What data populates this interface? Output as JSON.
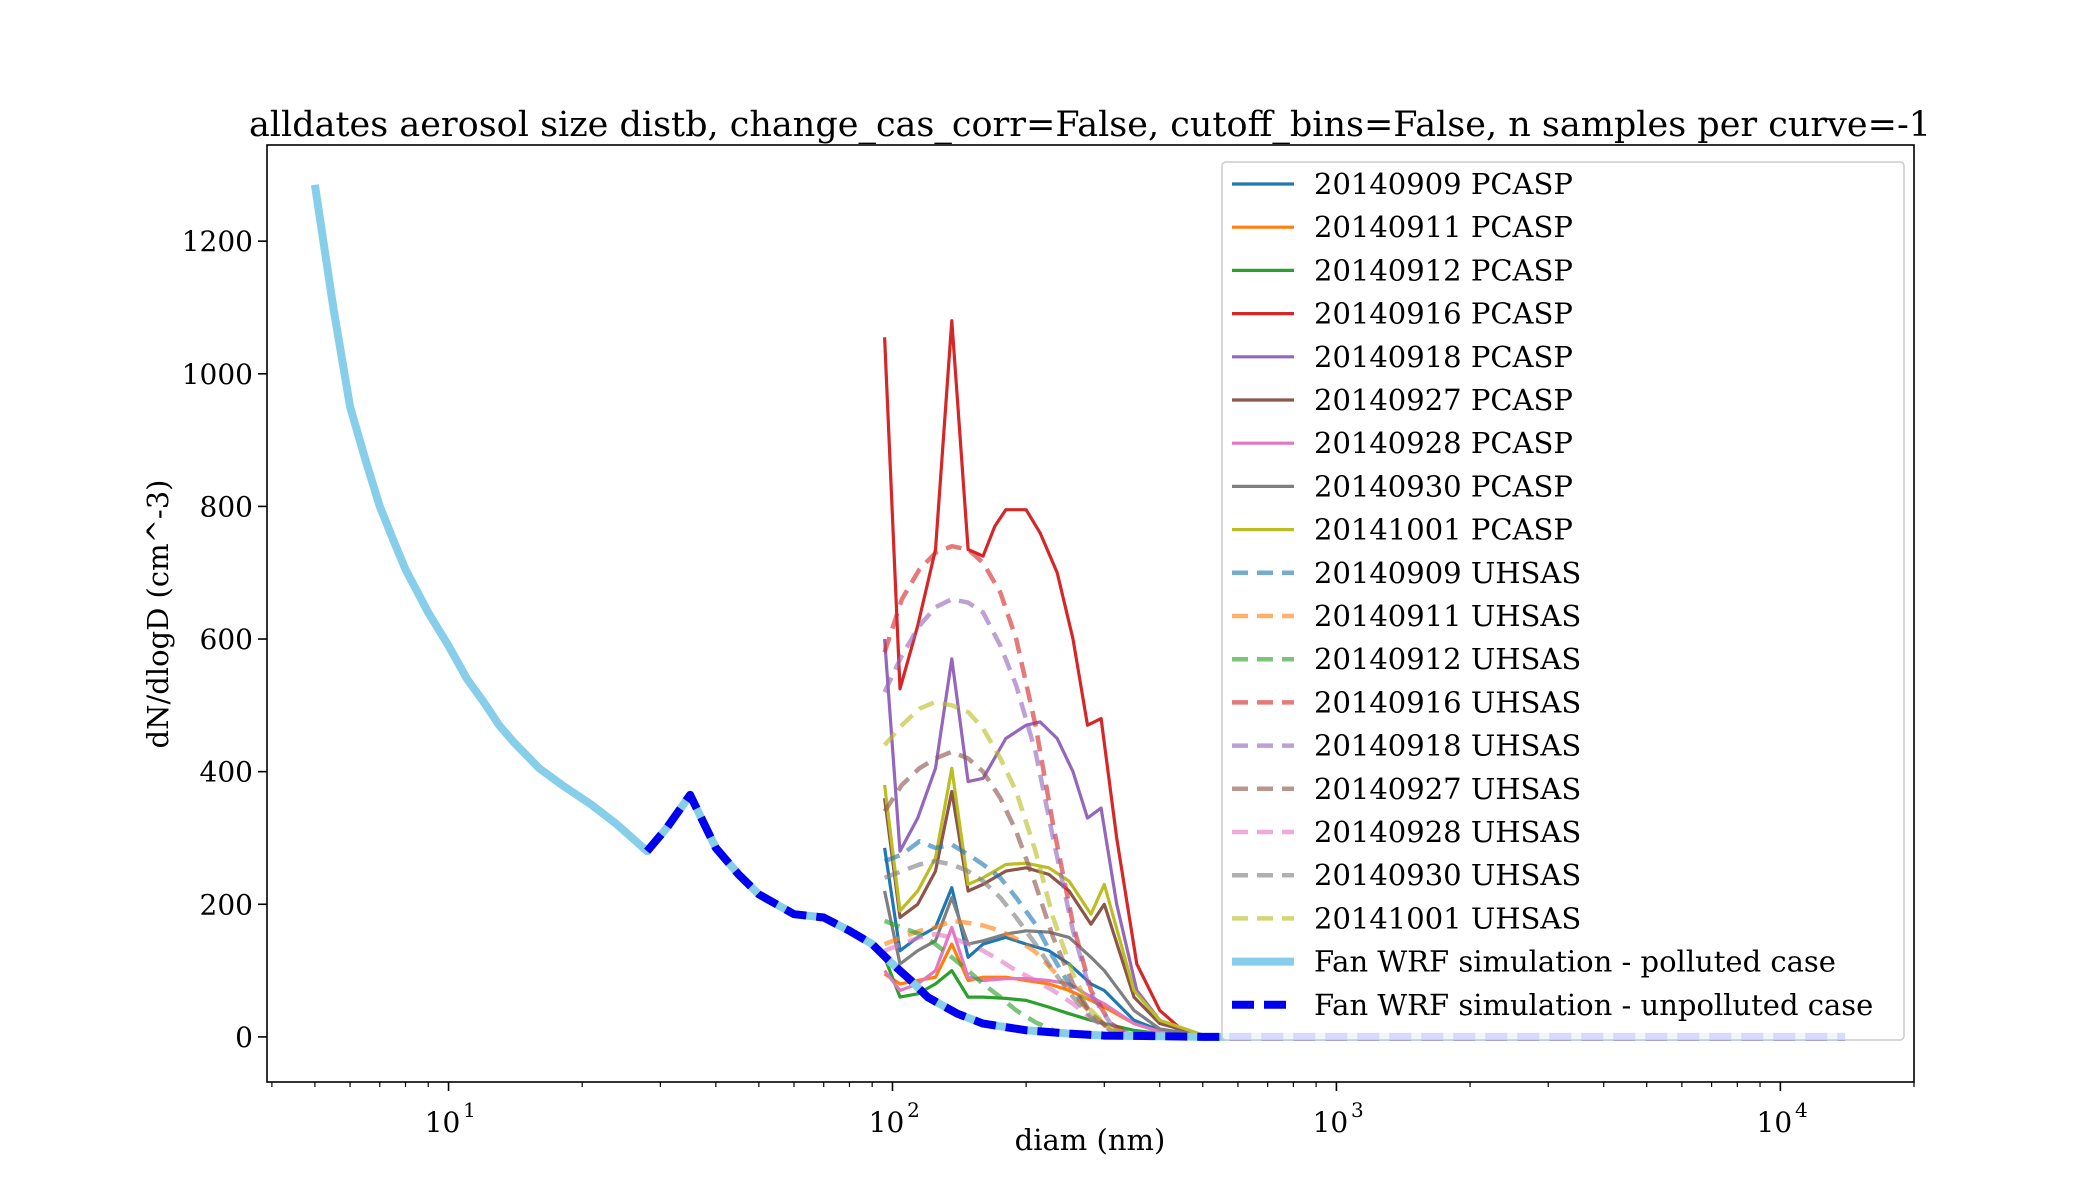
{
  "chart_data": {
    "type": "line",
    "title": "alldates aerosol size distb, change_cas_corr=False, cutoff_bins=False, n samples per curve=-1",
    "xlabel": "diam (nm)",
    "ylabel": "dN/dlogD (cm^-3)",
    "xscale": "log",
    "xlim": [
      3.9,
      20000
    ],
    "ylim": [
      -68,
      1345
    ],
    "yticks": [
      0,
      200,
      400,
      600,
      800,
      1000,
      1200
    ],
    "ytick_labels": [
      "0",
      "200",
      "400",
      "600",
      "800",
      "1000",
      "1200"
    ],
    "xticks": [
      10,
      100,
      1000,
      10000
    ],
    "xtick_labels": [
      {
        "base": "10",
        "exp": "1"
      },
      {
        "base": "10",
        "exp": "2"
      },
      {
        "base": "10",
        "exp": "3"
      },
      {
        "base": "10",
        "exp": "4"
      }
    ],
    "grid": false,
    "legend_position": "top-right",
    "series": [
      {
        "name": "20140909 PCASP",
        "color": "#1f77b4",
        "style": "solid",
        "width": 3.2,
        "x": [
          96,
          104,
          114,
          125,
          136,
          148,
          160,
          180,
          200,
          225,
          250,
          280,
          300,
          350,
          400,
          500
        ],
        "y": [
          285,
          130,
          150,
          165,
          225,
          120,
          140,
          150,
          140,
          130,
          110,
          80,
          70,
          25,
          10,
          2
        ]
      },
      {
        "name": "20140911 PCASP",
        "color": "#ff7f0e",
        "style": "solid",
        "width": 3.2,
        "x": [
          96,
          104,
          114,
          125,
          136,
          148,
          160,
          180,
          200,
          225,
          250,
          280,
          300,
          350,
          400,
          500
        ],
        "y": [
          95,
          80,
          85,
          90,
          140,
          85,
          90,
          90,
          85,
          80,
          70,
          55,
          45,
          20,
          8,
          2
        ]
      },
      {
        "name": "20140912 PCASP",
        "color": "#2ca02c",
        "style": "solid",
        "width": 3.2,
        "x": [
          96,
          104,
          114,
          125,
          136,
          148,
          160,
          180,
          200,
          225,
          250,
          280,
          300,
          350,
          400,
          500
        ],
        "y": [
          120,
          60,
          65,
          80,
          100,
          60,
          60,
          58,
          55,
          45,
          35,
          25,
          20,
          10,
          5,
          1
        ]
      },
      {
        "name": "20140916 PCASP",
        "color": "#d62728",
        "style": "solid",
        "width": 3.2,
        "x": [
          96,
          104,
          114,
          125,
          136,
          148,
          160,
          170,
          180,
          200,
          215,
          235,
          255,
          275,
          295,
          320,
          355,
          400,
          450,
          500
        ],
        "y": [
          1055,
          525,
          620,
          735,
          1080,
          735,
          725,
          770,
          795,
          795,
          760,
          700,
          600,
          470,
          480,
          300,
          110,
          40,
          10,
          2
        ]
      },
      {
        "name": "20140918 PCASP",
        "color": "#9467bd",
        "style": "solid",
        "width": 3.2,
        "x": [
          96,
          104,
          114,
          125,
          136,
          148,
          160,
          180,
          200,
          215,
          235,
          255,
          275,
          295,
          320,
          355,
          400,
          450,
          500
        ],
        "y": [
          600,
          280,
          330,
          405,
          570,
          385,
          390,
          450,
          470,
          475,
          450,
          400,
          330,
          345,
          200,
          70,
          25,
          8,
          2
        ]
      },
      {
        "name": "20140927 PCASP",
        "color": "#8c564b",
        "style": "solid",
        "width": 3.2,
        "x": [
          96,
          104,
          114,
          125,
          136,
          148,
          160,
          180,
          200,
          225,
          250,
          280,
          300,
          350,
          400,
          500
        ],
        "y": [
          360,
          180,
          200,
          250,
          370,
          220,
          230,
          250,
          255,
          245,
          220,
          170,
          200,
          60,
          20,
          3
        ]
      },
      {
        "name": "20140928 PCASP",
        "color": "#e377c2",
        "style": "solid",
        "width": 3.2,
        "x": [
          96,
          104,
          114,
          125,
          136,
          148,
          160,
          180,
          200,
          225,
          250,
          280,
          300,
          350,
          400,
          500
        ],
        "y": [
          100,
          70,
          80,
          100,
          165,
          90,
          85,
          88,
          88,
          85,
          80,
          60,
          50,
          20,
          8,
          2
        ]
      },
      {
        "name": "20140930 PCASP",
        "color": "#7f7f7f",
        "style": "solid",
        "width": 3.2,
        "x": [
          96,
          104,
          114,
          125,
          136,
          148,
          160,
          180,
          200,
          225,
          250,
          280,
          300,
          350,
          400,
          500
        ],
        "y": [
          220,
          110,
          130,
          145,
          210,
          140,
          145,
          155,
          160,
          158,
          150,
          120,
          100,
          40,
          12,
          2
        ]
      },
      {
        "name": "20141001 PCASP",
        "color": "#bcbd22",
        "style": "solid",
        "width": 3.2,
        "x": [
          96,
          104,
          114,
          125,
          136,
          148,
          160,
          180,
          200,
          225,
          250,
          280,
          300,
          350,
          400,
          500
        ],
        "y": [
          380,
          190,
          220,
          270,
          405,
          230,
          240,
          260,
          262,
          255,
          235,
          185,
          230,
          70,
          25,
          3
        ]
      },
      {
        "name": "20140909 UHSAS",
        "color": "#1f77b4",
        "style": "dashed",
        "width": 4.5,
        "opacity": 0.62,
        "x": [
          96,
          105,
          115,
          125,
          136,
          148,
          160,
          175,
          190,
          210,
          230,
          255,
          280,
          310,
          340
        ],
        "y": [
          265,
          275,
          295,
          285,
          290,
          275,
          260,
          240,
          210,
          170,
          120,
          70,
          35,
          12,
          3
        ]
      },
      {
        "name": "20140911 UHSAS",
        "color": "#ff7f0e",
        "style": "dashed",
        "width": 4.5,
        "opacity": 0.62,
        "x": [
          96,
          105,
          115,
          125,
          136,
          148,
          160,
          175,
          190,
          210,
          230,
          255,
          280,
          310,
          340
        ],
        "y": [
          140,
          150,
          160,
          165,
          175,
          172,
          168,
          160,
          148,
          128,
          100,
          65,
          35,
          12,
          3
        ]
      },
      {
        "name": "20140912 UHSAS",
        "color": "#2ca02c",
        "style": "dashed",
        "width": 4.5,
        "opacity": 0.62,
        "x": [
          96,
          105,
          115,
          125,
          136,
          148,
          160,
          175,
          190,
          210,
          230,
          255,
          280,
          310
        ],
        "y": [
          175,
          165,
          155,
          140,
          120,
          100,
          80,
          60,
          40,
          22,
          10,
          4,
          1,
          0
        ]
      },
      {
        "name": "20140916 UHSAS",
        "color": "#d62728",
        "style": "dashed",
        "width": 4.5,
        "opacity": 0.62,
        "x": [
          96,
          105,
          115,
          125,
          136,
          148,
          160,
          175,
          190,
          210,
          230,
          255,
          280,
          310,
          340
        ],
        "y": [
          580,
          660,
          705,
          730,
          740,
          735,
          715,
          670,
          600,
          470,
          320,
          170,
          70,
          20,
          5
        ]
      },
      {
        "name": "20140918 UHSAS",
        "color": "#9467bd",
        "style": "dashed",
        "width": 4.5,
        "opacity": 0.62,
        "x": [
          96,
          105,
          115,
          125,
          136,
          148,
          160,
          175,
          190,
          210,
          230,
          255,
          280,
          310,
          340
        ],
        "y": [
          520,
          575,
          620,
          648,
          660,
          655,
          640,
          590,
          530,
          430,
          300,
          160,
          65,
          20,
          5
        ]
      },
      {
        "name": "20140927 UHSAS",
        "color": "#8c564b",
        "style": "dashed",
        "width": 4.5,
        "opacity": 0.62,
        "x": [
          96,
          105,
          115,
          125,
          136,
          148,
          160,
          175,
          190,
          210,
          230,
          255,
          280,
          310,
          340
        ],
        "y": [
          340,
          380,
          405,
          420,
          430,
          420,
          400,
          360,
          310,
          230,
          150,
          80,
          35,
          10,
          2
        ]
      },
      {
        "name": "20140928 UHSAS",
        "color": "#e377c2",
        "style": "dashed",
        "width": 4.5,
        "opacity": 0.62,
        "x": [
          96,
          105,
          115,
          125,
          136,
          148,
          160,
          175,
          190,
          210,
          230,
          255,
          280,
          310,
          340
        ],
        "y": [
          130,
          140,
          150,
          155,
          150,
          140,
          130,
          115,
          100,
          85,
          70,
          50,
          28,
          10,
          2
        ]
      },
      {
        "name": "20140930 UHSAS",
        "color": "#7f7f7f",
        "style": "dashed",
        "width": 4.5,
        "opacity": 0.62,
        "x": [
          96,
          105,
          115,
          125,
          136,
          148,
          160,
          175,
          190,
          210,
          230,
          255,
          280,
          310,
          340
        ],
        "y": [
          240,
          250,
          260,
          265,
          260,
          250,
          235,
          210,
          180,
          140,
          100,
          60,
          30,
          10,
          2
        ]
      },
      {
        "name": "20141001 UHSAS",
        "color": "#bcbd22",
        "style": "dashed",
        "width": 4.5,
        "opacity": 0.62,
        "x": [
          96,
          105,
          115,
          125,
          136,
          148,
          160,
          175,
          190,
          210,
          230,
          255,
          280,
          310,
          340
        ],
        "y": [
          440,
          470,
          495,
          505,
          500,
          490,
          465,
          420,
          370,
          280,
          180,
          95,
          40,
          12,
          3
        ]
      },
      {
        "name": "Fan WRF simulation - polluted case",
        "color": "#87ceeb",
        "style": "solid",
        "width": 8,
        "x": [
          5,
          5.5,
          6,
          6.5,
          7,
          7.5,
          8,
          9,
          10,
          11,
          12,
          13,
          14,
          16,
          18,
          21,
          24,
          28,
          31,
          35,
          40,
          45,
          50,
          60,
          70,
          80,
          90,
          100,
          110,
          120,
          140,
          160,
          200,
          250,
          300,
          400,
          500,
          700,
          1000,
          14000
        ],
        "y": [
          1285,
          1100,
          950,
          870,
          800,
          750,
          705,
          640,
          590,
          540,
          505,
          470,
          445,
          405,
          380,
          350,
          320,
          280,
          315,
          365,
          285,
          245,
          215,
          185,
          180,
          160,
          140,
          110,
          85,
          60,
          35,
          20,
          10,
          5,
          2,
          1,
          0,
          0,
          0,
          0
        ]
      },
      {
        "name": "Fan WRF simulation - unpolluted case",
        "color": "#0000ee",
        "style": "dashed",
        "width": 8,
        "x": [
          28,
          31,
          35,
          40,
          45,
          50,
          60,
          70,
          80,
          90,
          100,
          110,
          120,
          140,
          160,
          200,
          250,
          300,
          400,
          500,
          700,
          1000,
          2000,
          5000,
          14000
        ],
        "y": [
          280,
          315,
          365,
          285,
          245,
          215,
          185,
          180,
          160,
          140,
          110,
          85,
          60,
          35,
          20,
          10,
          5,
          2,
          1,
          0,
          0,
          0,
          0,
          0,
          0
        ]
      }
    ]
  }
}
